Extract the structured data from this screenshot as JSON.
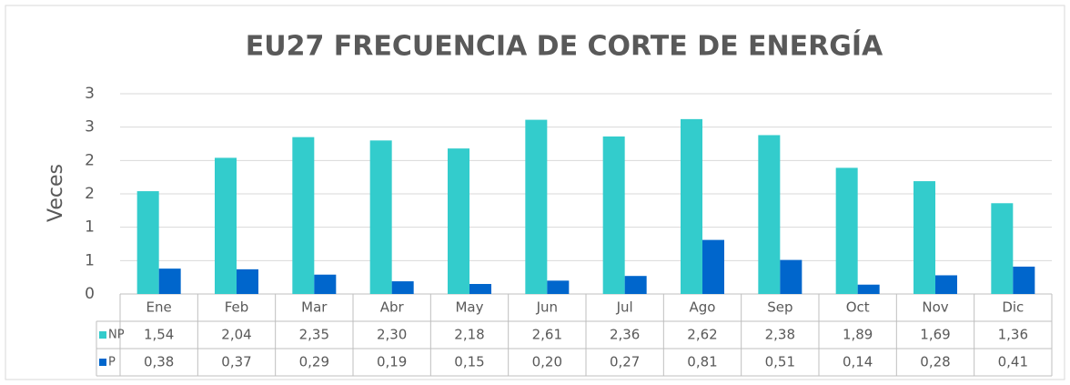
{
  "chart_data": {
    "type": "bar",
    "title": "EU27 FRECUENCIA DE CORTE DE ENERGÍA",
    "y_label": "Veces",
    "categories": [
      "Ene",
      "Feb",
      "Mar",
      "Abr",
      "May",
      "Jun",
      "Jul",
      "Ago",
      "Sep",
      "Oct",
      "Nov",
      "Dic"
    ],
    "series": [
      {
        "name": "NP",
        "color": "#33cccc",
        "values": [
          1.54,
          2.04,
          2.35,
          2.3,
          2.18,
          2.61,
          2.36,
          2.62,
          2.38,
          1.89,
          1.69,
          1.36
        ],
        "value_labels": [
          "1,54",
          "2,04",
          "2,35",
          "2,30",
          "2,18",
          "2,61",
          "2,36",
          "2,62",
          "2,38",
          "1,89",
          "1,69",
          "1,36"
        ]
      },
      {
        "name": "P",
        "color": "#0066cc",
        "values": [
          0.38,
          0.37,
          0.29,
          0.19,
          0.15,
          0.2,
          0.27,
          0.81,
          0.51,
          0.14,
          0.28,
          0.41
        ],
        "value_labels": [
          "0,38",
          "0,37",
          "0,29",
          "0,19",
          "0,15",
          "0,20",
          "0,27",
          "0,81",
          "0,51",
          "0,14",
          "0,28",
          "0,41"
        ]
      }
    ],
    "ylim": [
      0,
      3
    ],
    "yticks": [
      0,
      {
        "value": 0.5,
        "label": "1"
      },
      {
        "value": 1,
        "label": "1"
      },
      {
        "value": 1.5,
        "label": "2"
      },
      {
        "value": 2,
        "label": "2"
      },
      {
        "value": 2.5,
        "label": "3"
      },
      {
        "value": 3,
        "label": "3"
      }
    ],
    "grid": true
  }
}
